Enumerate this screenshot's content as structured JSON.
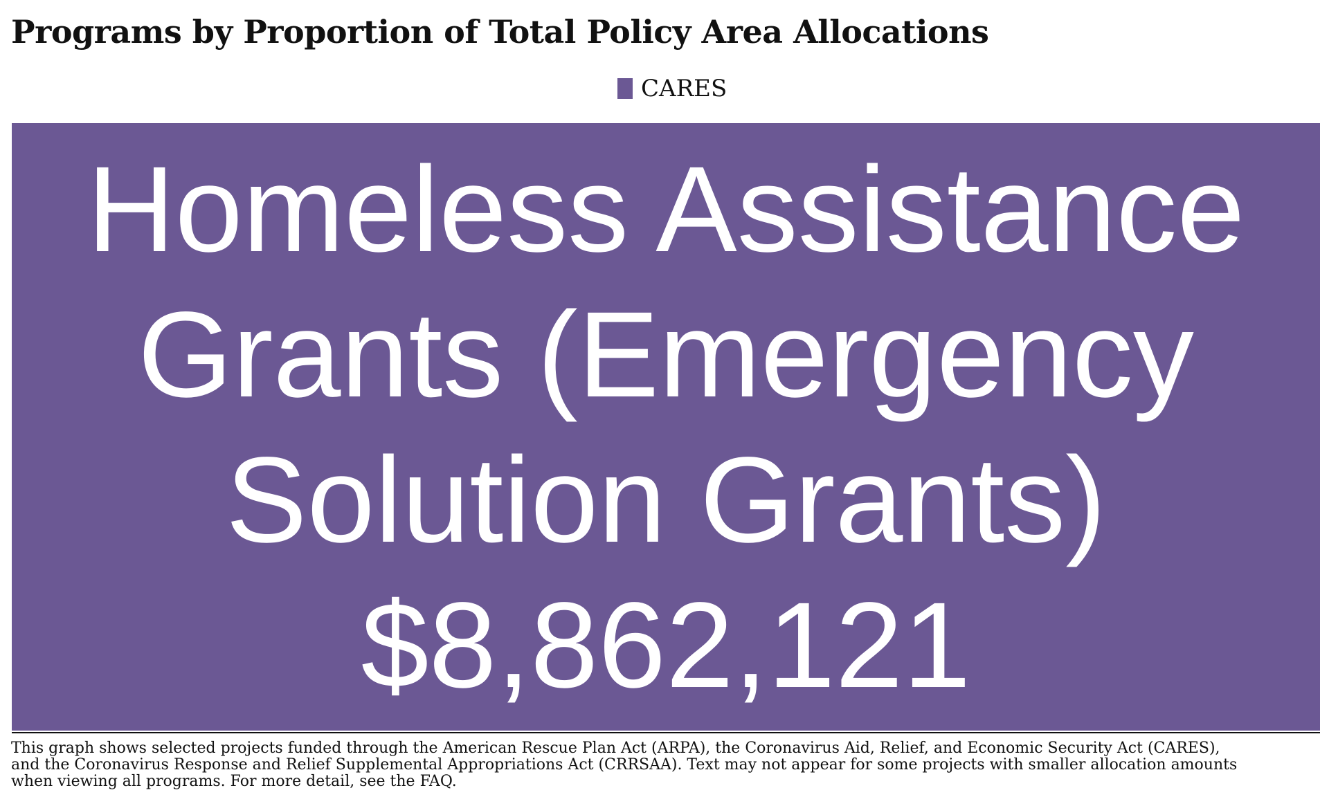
{
  "chart_data": {
    "type": "treemap",
    "title": "Programs by Proportion of Total Policy Area Allocations",
    "legend": [
      {
        "name": "CARES",
        "color": "#6b5894"
      }
    ],
    "items": [
      {
        "series": "CARES",
        "label_lines": [
          "Homeless Assistance",
          "Grants (Emergency",
          "Solution Grants)",
          "$8,862,121"
        ],
        "name": "Homeless Assistance Grants (Emergency Solution Grants)",
        "value": 8862121,
        "value_label": "$8,862,121",
        "color": "#6b5894"
      }
    ]
  },
  "footnote": {
    "lines": [
      "This graph shows selected projects funded through the American Rescue Plan Act (ARPA), the Coronavirus Aid, Relief, and Economic Security Act (CARES),",
      "and the Coronavirus Response and Relief Supplemental Appropriations Act (CRRSAA). Text may not appear for some projects with smaller allocation amounts",
      " when viewing all programs. For more detail, see the FAQ."
    ]
  }
}
